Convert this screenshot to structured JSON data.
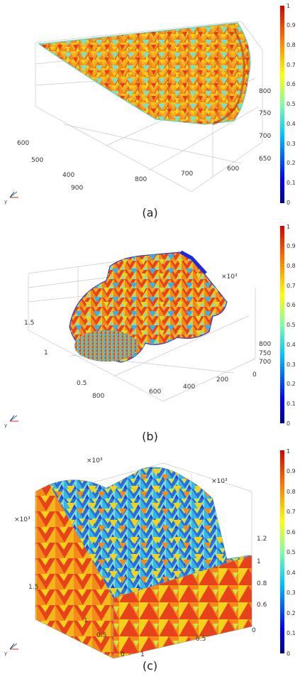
{
  "colors": {
    "gradient": [
      "#00008f",
      "#0000ff",
      "#007fff",
      "#00ffff",
      "#7fff7f",
      "#ffff00",
      "#ff7f00",
      "#ff0000",
      "#7f0000"
    ],
    "mesh": [
      "#f5a623",
      "#f08a1a",
      "#e8641a",
      "#f5c518",
      "#e83c1c",
      "#ff9a1a",
      "#d8dd2a",
      "#7ee0c0",
      "#3ab0e8"
    ],
    "mesh_c": [
      "#2b6de0",
      "#34b7e8",
      "#7be0c8",
      "#c9e84a",
      "#f2d21a",
      "#f58a1a",
      "#e8421c",
      "#2a3fd8",
      "#5ad1e0"
    ]
  },
  "colorbar_ticks": [
    "1",
    "0.9",
    "0.8",
    "0.7",
    "0.6",
    "0.5",
    "0.4",
    "0.3",
    "0.2",
    "0.1",
    "0"
  ],
  "panels": [
    {
      "caption": "(a)",
      "ticks_left": [
        "600",
        "500",
        "400",
        "900"
      ],
      "ticks_bottom": [
        "800",
        "700",
        "600"
      ],
      "ticks_right": [
        "800",
        "750",
        "700",
        "650"
      ],
      "triad": "y"
    },
    {
      "caption": "(b)",
      "exponent": "×10³",
      "ticks_left": [
        "1.5",
        "1",
        "0.5",
        "800"
      ],
      "ticks_bottom": [
        "600",
        "400",
        "200",
        "0"
      ],
      "ticks_right": [
        "800",
        "750",
        "700"
      ],
      "triad": "y"
    },
    {
      "caption": "(c)",
      "exponent_top": "×10³",
      "exponent_right": "×10³",
      "exponent_left": "×10³",
      "ticks_left": [
        "1.5",
        "1",
        "0.5",
        "0"
      ],
      "ticks_bottom": [
        "1",
        "0.5",
        "0"
      ],
      "ticks_right": [
        "1.2",
        "1",
        "0.8",
        "0.6"
      ],
      "triad": "y"
    }
  ]
}
